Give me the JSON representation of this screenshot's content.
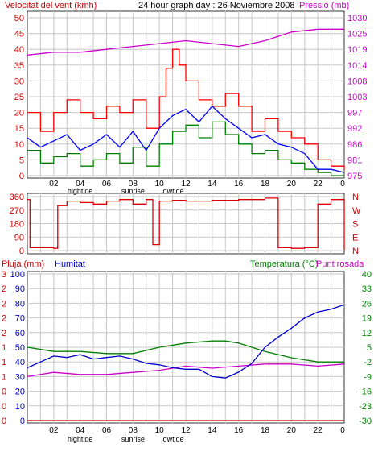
{
  "title": "24 hour graph day : 26 Noviembre 2008",
  "colors": {
    "wind_gust": "#ff0000",
    "wind_avg": "#0000ff",
    "wind_min": "#008000",
    "pressure": "#cc00cc",
    "direction": "#dd0000",
    "rain": "#cc0000",
    "humidity": "#0000cc",
    "temperature": "#008000",
    "dewpoint": "#cc00cc",
    "grid": "#c8c8c8",
    "axis_red": "#cc0000",
    "axis_blue": "#0000cc",
    "axis_green": "#008000",
    "axis_magenta": "#cc00cc"
  },
  "x_axis": {
    "hour_labels": [
      "02",
      "04",
      "06",
      "08",
      "10",
      "12",
      "14",
      "16",
      "18",
      "20",
      "22",
      "0"
    ],
    "tide_labels": [
      {
        "label": "hightide",
        "hour": 4
      },
      {
        "label": "sunrise",
        "hour": 8
      },
      {
        "label": "lowtide",
        "hour": 11
      },
      {
        "label": "hightide",
        "hour": 4
      },
      {
        "label": "sunrise",
        "hour": 8
      },
      {
        "label": "lowtide",
        "hour": 11
      }
    ]
  },
  "chart_data": [
    {
      "type": "line",
      "title": "24 hour graph day : 26 Noviembre 2008",
      "ylabel_left": "Velocitat del vent (kmh)",
      "ylabel_right": "Pressió (mb)",
      "yticks_left": [
        "0",
        "5",
        "10",
        "15",
        "20",
        "25",
        "30",
        "35",
        "40",
        "45",
        "50"
      ],
      "yticks_right": [
        "975",
        "981",
        "986",
        "992",
        "997",
        "1003",
        "1008",
        "1014",
        "1019",
        "1025",
        "1030"
      ],
      "ylim_left": [
        0,
        50
      ],
      "ylim_right": [
        975,
        1030
      ],
      "grid": true,
      "series": [
        {
          "name": "gust",
          "axis": "left",
          "x": [
            0,
            1,
            2,
            3,
            4,
            5,
            6,
            7,
            8,
            9,
            10,
            10.5,
            11,
            11.5,
            12,
            13,
            14,
            15,
            16,
            17,
            18,
            19,
            20,
            21,
            22,
            23,
            24
          ],
          "values": [
            20,
            14,
            20,
            24,
            20,
            18,
            22,
            20,
            24,
            15,
            25,
            34,
            40,
            35,
            30,
            24,
            22,
            26,
            22,
            14,
            18,
            14,
            12,
            10,
            5,
            3,
            2
          ]
        },
        {
          "name": "average",
          "axis": "left",
          "x": [
            0,
            1,
            2,
            3,
            4,
            5,
            6,
            7,
            8,
            9,
            10,
            11,
            12,
            13,
            14,
            15,
            16,
            17,
            18,
            19,
            20,
            21,
            22,
            23,
            24
          ],
          "values": [
            12,
            9,
            11,
            13,
            8,
            10,
            13,
            9,
            14,
            8,
            15,
            19,
            21,
            17,
            22,
            18,
            15,
            12,
            13,
            10,
            9,
            7,
            2,
            2,
            1
          ]
        },
        {
          "name": "minimum",
          "axis": "left",
          "x": [
            0,
            1,
            2,
            3,
            4,
            5,
            6,
            7,
            8,
            9,
            10,
            11,
            12,
            13,
            14,
            15,
            16,
            17,
            18,
            19,
            20,
            21,
            22,
            23,
            24
          ],
          "values": [
            8,
            4,
            6,
            7,
            3,
            5,
            7,
            4,
            9,
            3,
            10,
            14,
            16,
            12,
            17,
            13,
            10,
            7,
            8,
            5,
            4,
            2,
            1,
            0,
            0
          ]
        },
        {
          "name": "pressure",
          "axis": "right",
          "x": [
            0,
            2,
            4,
            6,
            8,
            10,
            12,
            14,
            16,
            18,
            20,
            22,
            24
          ],
          "values": [
            1017,
            1018,
            1018,
            1019,
            1020,
            1021,
            1022,
            1021,
            1020,
            1022,
            1025,
            1026,
            1026
          ]
        }
      ]
    },
    {
      "type": "line",
      "yticks_left": [
        "0",
        "90",
        "180",
        "270",
        "360"
      ],
      "yticks_right": [
        "N",
        "E",
        "S",
        "W",
        "N"
      ],
      "ylim": [
        0,
        360
      ],
      "grid": true,
      "series": [
        {
          "name": "direction",
          "x": [
            0,
            0.2,
            1,
            2,
            2.3,
            3,
            4,
            5,
            6,
            7,
            8,
            9,
            9.5,
            10,
            11,
            12,
            14,
            16,
            18,
            19,
            20,
            21,
            22,
            23,
            24
          ],
          "values": [
            340,
            20,
            20,
            15,
            300,
            330,
            320,
            310,
            330,
            340,
            310,
            340,
            40,
            330,
            335,
            330,
            335,
            340,
            350,
            20,
            15,
            20,
            310,
            340,
            5
          ]
        }
      ]
    },
    {
      "type": "line",
      "ylabel_left_1": "Pluja (mm)",
      "ylabel_left_2": "Humitat",
      "ylabel_right": "Temperatura (°C)",
      "ylabel_right_2": "Punt rosada",
      "yticks_rain": [
        "0",
        "0",
        "0",
        "1",
        "1",
        "1",
        "2",
        "2",
        "2",
        "2",
        "3"
      ],
      "yticks_humidity": [
        "0",
        "10",
        "20",
        "30",
        "40",
        "50",
        "60",
        "70",
        "80",
        "90",
        "100"
      ],
      "yticks_temp": [
        "-30",
        "-23",
        "-16",
        "-9",
        "-2",
        "5",
        "12",
        "19",
        "26",
        "33",
        "40"
      ],
      "ylim_humidity": [
        0,
        100
      ],
      "ylim_temp": [
        -30,
        40
      ],
      "grid": true,
      "series": [
        {
          "name": "rain",
          "axis": "rain",
          "x": [
            0,
            24
          ],
          "values": [
            0,
            0
          ]
        },
        {
          "name": "humidity",
          "axis": "humidity",
          "x": [
            0,
            1,
            2,
            3,
            4,
            5,
            6,
            7,
            8,
            9,
            10,
            11,
            12,
            13,
            14,
            15,
            16,
            17,
            18,
            19,
            20,
            21,
            22,
            23,
            24
          ],
          "values": [
            36,
            40,
            44,
            43,
            45,
            42,
            43,
            44,
            42,
            39,
            38,
            36,
            35,
            35,
            30,
            29,
            33,
            39,
            50,
            57,
            63,
            70,
            74,
            76,
            79
          ]
        },
        {
          "name": "temperature",
          "axis": "temp",
          "x": [
            0,
            2,
            4,
            6,
            8,
            10,
            12,
            14,
            15,
            16,
            18,
            20,
            22,
            24
          ],
          "values": [
            5,
            3,
            3,
            2,
            2,
            5,
            7,
            8,
            8,
            7,
            3,
            0,
            -2,
            -2
          ]
        },
        {
          "name": "dewpoint",
          "axis": "temp",
          "x": [
            0,
            2,
            4,
            6,
            8,
            10,
            12,
            14,
            16,
            18,
            20,
            22,
            24
          ],
          "values": [
            -9,
            -7,
            -8,
            -8,
            -7,
            -6,
            -4,
            -5,
            -4,
            -3,
            -3,
            -4,
            -3
          ]
        }
      ]
    }
  ]
}
